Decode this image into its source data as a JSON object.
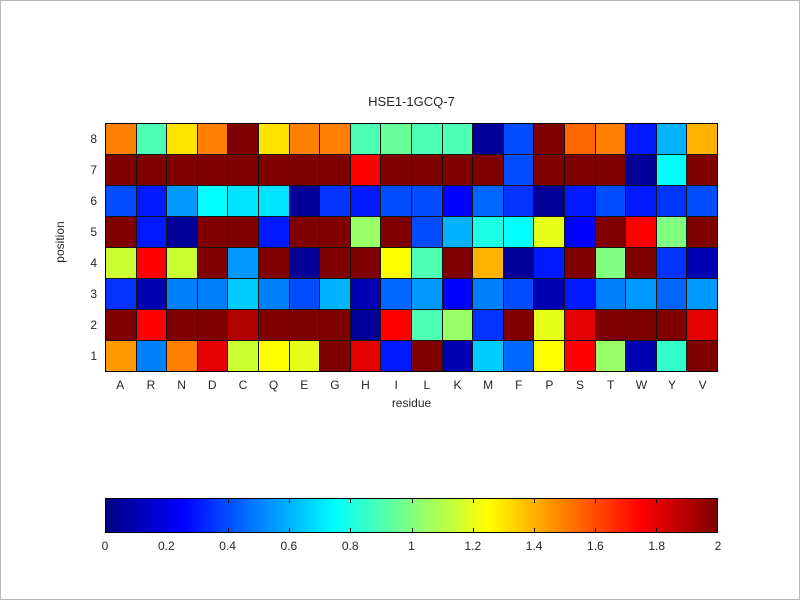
{
  "chart_data": {
    "type": "heatmap",
    "title": "HSE1-1GCQ-7",
    "xlabel": "residue",
    "ylabel": "position",
    "colormap": "jet",
    "vmin": 0,
    "vmax": 2,
    "grid": true,
    "x_categories": [
      "A",
      "R",
      "N",
      "D",
      "C",
      "Q",
      "E",
      "G",
      "H",
      "I",
      "L",
      "K",
      "M",
      "F",
      "P",
      "S",
      "T",
      "W",
      "Y",
      "V"
    ],
    "y_categories": [
      "8",
      "7",
      "6",
      "5",
      "4",
      "3",
      "2",
      "1"
    ],
    "values": [
      [
        1.5,
        0.9,
        1.3,
        1.5,
        2.0,
        1.3,
        1.5,
        1.5,
        0.9,
        0.95,
        0.9,
        0.9,
        0.05,
        0.4,
        2.0,
        1.55,
        1.5,
        0.3,
        0.6,
        1.4
      ],
      [
        2.0,
        2.0,
        2.0,
        2.0,
        2.0,
        2.0,
        2.0,
        2.0,
        1.75,
        2.0,
        2.0,
        2.0,
        2.0,
        0.4,
        2.0,
        2.0,
        2.0,
        0.05,
        0.75,
        2.0
      ],
      [
        0.4,
        0.3,
        0.55,
        0.75,
        0.7,
        0.7,
        0.05,
        0.35,
        0.3,
        0.4,
        0.4,
        0.25,
        0.45,
        0.35,
        0.05,
        0.3,
        0.4,
        0.3,
        0.35,
        0.4
      ],
      [
        2.0,
        0.3,
        0.05,
        2.0,
        2.0,
        0.3,
        2.0,
        2.0,
        1.05,
        2.0,
        0.4,
        0.6,
        0.8,
        0.75,
        1.2,
        0.25,
        2.0,
        1.75,
        1.0,
        2.0
      ],
      [
        1.15,
        1.75,
        1.15,
        2.0,
        0.55,
        2.0,
        0.05,
        2.0,
        2.0,
        1.25,
        0.9,
        2.0,
        1.4,
        0.05,
        0.3,
        2.0,
        1.0,
        2.0,
        0.35,
        0.1
      ],
      [
        0.35,
        0.1,
        0.5,
        0.5,
        0.65,
        0.5,
        0.4,
        0.6,
        0.1,
        0.45,
        0.55,
        0.25,
        0.5,
        0.4,
        0.1,
        0.3,
        0.5,
        0.55,
        0.45,
        0.55
      ],
      [
        2.0,
        1.75,
        2.0,
        2.0,
        1.9,
        2.0,
        2.0,
        2.0,
        0.05,
        1.75,
        0.9,
        1.05,
        0.35,
        2.0,
        1.2,
        1.8,
        2.0,
        2.0,
        2.0,
        1.8
      ],
      [
        1.45,
        0.5,
        1.5,
        1.8,
        1.15,
        1.25,
        1.2,
        2.0,
        1.8,
        0.3,
        2.0,
        0.1,
        0.65,
        0.45,
        1.25,
        1.75,
        1.05,
        0.1,
        0.85,
        2.0
      ]
    ],
    "colorbar_ticks": [
      "0",
      "0.2",
      "0.4",
      "0.6",
      "0.8",
      "1",
      "1.2",
      "1.4",
      "1.6",
      "1.8",
      "2"
    ],
    "legend_position": "bottom-colorbar"
  }
}
